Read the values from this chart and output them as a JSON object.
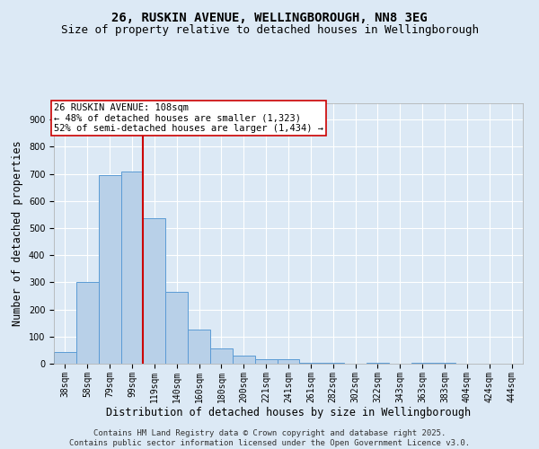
{
  "title1": "26, RUSKIN AVENUE, WELLINGBOROUGH, NN8 3EG",
  "title2": "Size of property relative to detached houses in Wellingborough",
  "xlabel": "Distribution of detached houses by size in Wellingborough",
  "ylabel": "Number of detached properties",
  "categories": [
    "38sqm",
    "58sqm",
    "79sqm",
    "99sqm",
    "119sqm",
    "140sqm",
    "160sqm",
    "180sqm",
    "200sqm",
    "221sqm",
    "241sqm",
    "261sqm",
    "282sqm",
    "302sqm",
    "322sqm",
    "343sqm",
    "363sqm",
    "383sqm",
    "404sqm",
    "424sqm",
    "444sqm"
  ],
  "values": [
    42,
    300,
    695,
    710,
    535,
    265,
    125,
    55,
    30,
    18,
    18,
    4,
    4,
    0,
    4,
    0,
    4,
    4,
    0,
    0,
    0
  ],
  "bar_color": "#b8d0e8",
  "bar_edge_color": "#5b9bd5",
  "vline_x": 3.5,
  "vline_color": "#cc0000",
  "annotation_text": "26 RUSKIN AVENUE: 108sqm\n← 48% of detached houses are smaller (1,323)\n52% of semi-detached houses are larger (1,434) →",
  "annotation_box_color": "#ffffff",
  "annotation_box_edge_color": "#cc0000",
  "ylim": [
    0,
    960
  ],
  "yticks": [
    0,
    100,
    200,
    300,
    400,
    500,
    600,
    700,
    800,
    900
  ],
  "bg_color": "#dce9f5",
  "plot_bg_color": "#dce9f5",
  "footer": "Contains HM Land Registry data © Crown copyright and database right 2025.\nContains public sector information licensed under the Open Government Licence v3.0.",
  "title_fontsize": 10,
  "subtitle_fontsize": 9,
  "axis_label_fontsize": 8.5,
  "tick_fontsize": 7,
  "annotation_fontsize": 7.5,
  "footer_fontsize": 6.5
}
